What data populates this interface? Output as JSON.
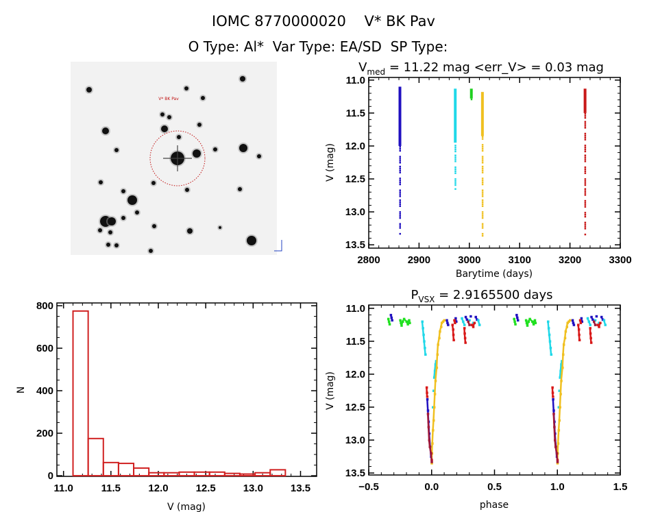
{
  "header": {
    "title": "IOMC 8770000020    V* BK Pav",
    "subtitle": "O Type: Al*  Var Type: EA/SD  SP Type:"
  },
  "image_panel": {
    "target_label": "V* BK Pav",
    "marker_color": "#c01010"
  },
  "chart_data": [
    {
      "type": "scatter",
      "name": "light-curve",
      "title_parts": {
        "v": "V",
        "sub": "med",
        "rest": " = 11.22 mag <err_V> = 0.03 mag"
      },
      "xlabel": "Barytime (days)",
      "ylabel": "V (mag)",
      "xlim": [
        2800,
        3300
      ],
      "ylim": [
        10.96,
        13.55
      ],
      "y_inverted": true,
      "xticks": [
        2800,
        2900,
        3000,
        3100,
        3200,
        3300
      ],
      "yticks": [
        11.0,
        11.5,
        12.0,
        12.5,
        13.0,
        13.5
      ],
      "series": [
        {
          "name": "season-1",
          "color": "#2010c0",
          "t": 2862,
          "vmin": 11.1,
          "vmax": 13.32,
          "dense_to": 12.0
        },
        {
          "name": "season-2",
          "color": "#20d8e8",
          "t": 2972,
          "vmin": 11.13,
          "vmax": 12.65,
          "dense_to": 11.95
        },
        {
          "name": "season-3",
          "color": "#20d020",
          "t": 3004,
          "vmin": 11.13,
          "vmax": 11.28,
          "dense_to": 11.28
        },
        {
          "name": "season-4",
          "color": "#f0c020",
          "t": 3026,
          "vmin": 11.18,
          "vmax": 13.35,
          "dense_to": 11.85
        },
        {
          "name": "season-5",
          "color": "#c81818",
          "t": 3230,
          "vmin": 11.13,
          "vmax": 13.35,
          "dense_to": 11.5
        }
      ]
    },
    {
      "type": "bar",
      "name": "histogram",
      "xlabel": "V (mag)",
      "ylabel": "N",
      "xlim": [
        10.93,
        13.67
      ],
      "ylim": [
        -3,
        813
      ],
      "xticks": [
        11.0,
        11.5,
        12.0,
        12.5,
        13.0,
        13.5
      ],
      "yticks": [
        0,
        200,
        400,
        600,
        800
      ],
      "bin_start": 11.1,
      "bin_width": 0.16,
      "values": [
        775,
        175,
        62,
        58,
        36,
        14,
        14,
        17,
        17,
        17,
        11,
        8,
        14,
        28,
        0
      ],
      "color": "#d02020"
    },
    {
      "type": "scatter",
      "name": "phase-curve",
      "title_parts": {
        "v": "P",
        "sub": "VSX",
        "rest": " = 2.9165500 days"
      },
      "xlabel": "phase",
      "ylabel": "V (mag)",
      "xlim": [
        -0.5,
        1.5
      ],
      "ylim": [
        10.95,
        13.53
      ],
      "y_inverted": true,
      "xticks": [
        -0.5,
        0.0,
        0.5,
        1.0,
        1.5
      ],
      "yticks": [
        11.0,
        11.5,
        12.0,
        12.5,
        13.0,
        13.5
      ],
      "period_days": 2.91655,
      "series": [
        {
          "name": "green",
          "color": "#20e020",
          "points": [
            [
              -0.345,
              11.16
            ],
            [
              -0.34,
              11.2
            ],
            [
              -0.335,
              11.24
            ],
            [
              -0.25,
              11.18
            ],
            [
              -0.245,
              11.22
            ],
            [
              -0.24,
              11.26
            ],
            [
              -0.23,
              11.2
            ],
            [
              -0.22,
              11.16
            ],
            [
              -0.2,
              11.2
            ],
            [
              -0.19,
              11.24
            ],
            [
              -0.18,
              11.18
            ],
            [
              -0.175,
              11.22
            ]
          ]
        },
        {
          "name": "blue",
          "color": "#2010c0",
          "points": [
            [
              -0.325,
              11.1
            ],
            [
              -0.32,
              11.14
            ],
            [
              -0.315,
              11.18
            ],
            [
              -0.035,
              12.38
            ],
            [
              -0.03,
              12.55
            ],
            [
              -0.025,
              12.72
            ],
            [
              -0.02,
              12.9
            ],
            [
              -0.012,
              13.1
            ],
            [
              -0.005,
              13.25
            ],
            [
              0.12,
              11.18
            ],
            [
              0.125,
              11.22
            ],
            [
              0.13,
              11.25
            ],
            [
              0.19,
              11.15
            ],
            [
              0.195,
              11.2
            ],
            [
              0.27,
              11.13
            ],
            [
              0.28,
              11.17
            ],
            [
              0.31,
              11.12
            ],
            [
              0.35,
              11.13
            ],
            [
              0.36,
              11.17
            ]
          ]
        },
        {
          "name": "cyan",
          "color": "#20d8e8",
          "points": [
            [
              -0.075,
              11.2
            ],
            [
              -0.07,
              11.3
            ],
            [
              -0.065,
              11.4
            ],
            [
              -0.06,
              11.5
            ],
            [
              -0.055,
              11.6
            ],
            [
              -0.05,
              11.7
            ],
            [
              0.02,
              12.05
            ],
            [
              0.025,
              11.95
            ],
            [
              0.03,
              11.85
            ],
            [
              0.035,
              11.8
            ],
            [
              0.015,
              12.25
            ],
            [
              0.01,
              12.5
            ],
            [
              0.24,
              11.15
            ],
            [
              0.25,
              11.2
            ],
            [
              0.26,
              11.25
            ],
            [
              0.3,
              11.18
            ],
            [
              0.33,
              11.22
            ],
            [
              0.37,
              11.18
            ],
            [
              0.38,
              11.25
            ]
          ]
        },
        {
          "name": "gold",
          "color": "#f0c020",
          "points": [
            [
              0.0,
              13.35
            ],
            [
              0.002,
              13.2
            ],
            [
              0.005,
              13.05
            ],
            [
              0.01,
              12.85
            ],
            [
              0.015,
              12.7
            ],
            [
              0.02,
              12.5
            ],
            [
              0.025,
              12.3
            ],
            [
              0.03,
              12.1
            ],
            [
              0.04,
              11.9
            ],
            [
              0.045,
              11.7
            ],
            [
              0.05,
              11.55
            ],
            [
              0.06,
              11.45
            ],
            [
              0.065,
              11.35
            ],
            [
              0.075,
              11.28
            ],
            [
              0.08,
              11.22
            ],
            [
              0.09,
              11.2
            ],
            [
              0.1,
              11.18
            ]
          ]
        },
        {
          "name": "red",
          "color": "#d81818",
          "points": [
            [
              -0.04,
              12.2
            ],
            [
              -0.038,
              12.28
            ],
            [
              -0.036,
              12.34
            ],
            [
              0.165,
              11.25
            ],
            [
              0.17,
              11.32
            ],
            [
              0.172,
              11.4
            ],
            [
              0.175,
              11.48
            ],
            [
              0.18,
              11.18
            ],
            [
              0.185,
              11.22
            ],
            [
              0.26,
              11.3
            ],
            [
              0.262,
              11.38
            ],
            [
              0.265,
              11.45
            ],
            [
              0.268,
              11.52
            ],
            [
              0.32,
              11.25
            ],
            [
              0.33,
              11.28
            ],
            [
              0.34,
              11.22
            ],
            [
              0.0,
              13.3
            ]
          ]
        },
        {
          "name": "dark-red",
          "color": "#a01838",
          "points": [
            [
              -0.03,
              12.6
            ],
            [
              -0.025,
              12.8
            ],
            [
              -0.02,
              13.0
            ],
            [
              -0.015,
              13.1
            ],
            [
              -0.005,
              13.2
            ],
            [
              0.0,
              13.33
            ],
            [
              0.29,
              11.2
            ],
            [
              0.3,
              11.25
            ]
          ]
        }
      ]
    }
  ]
}
